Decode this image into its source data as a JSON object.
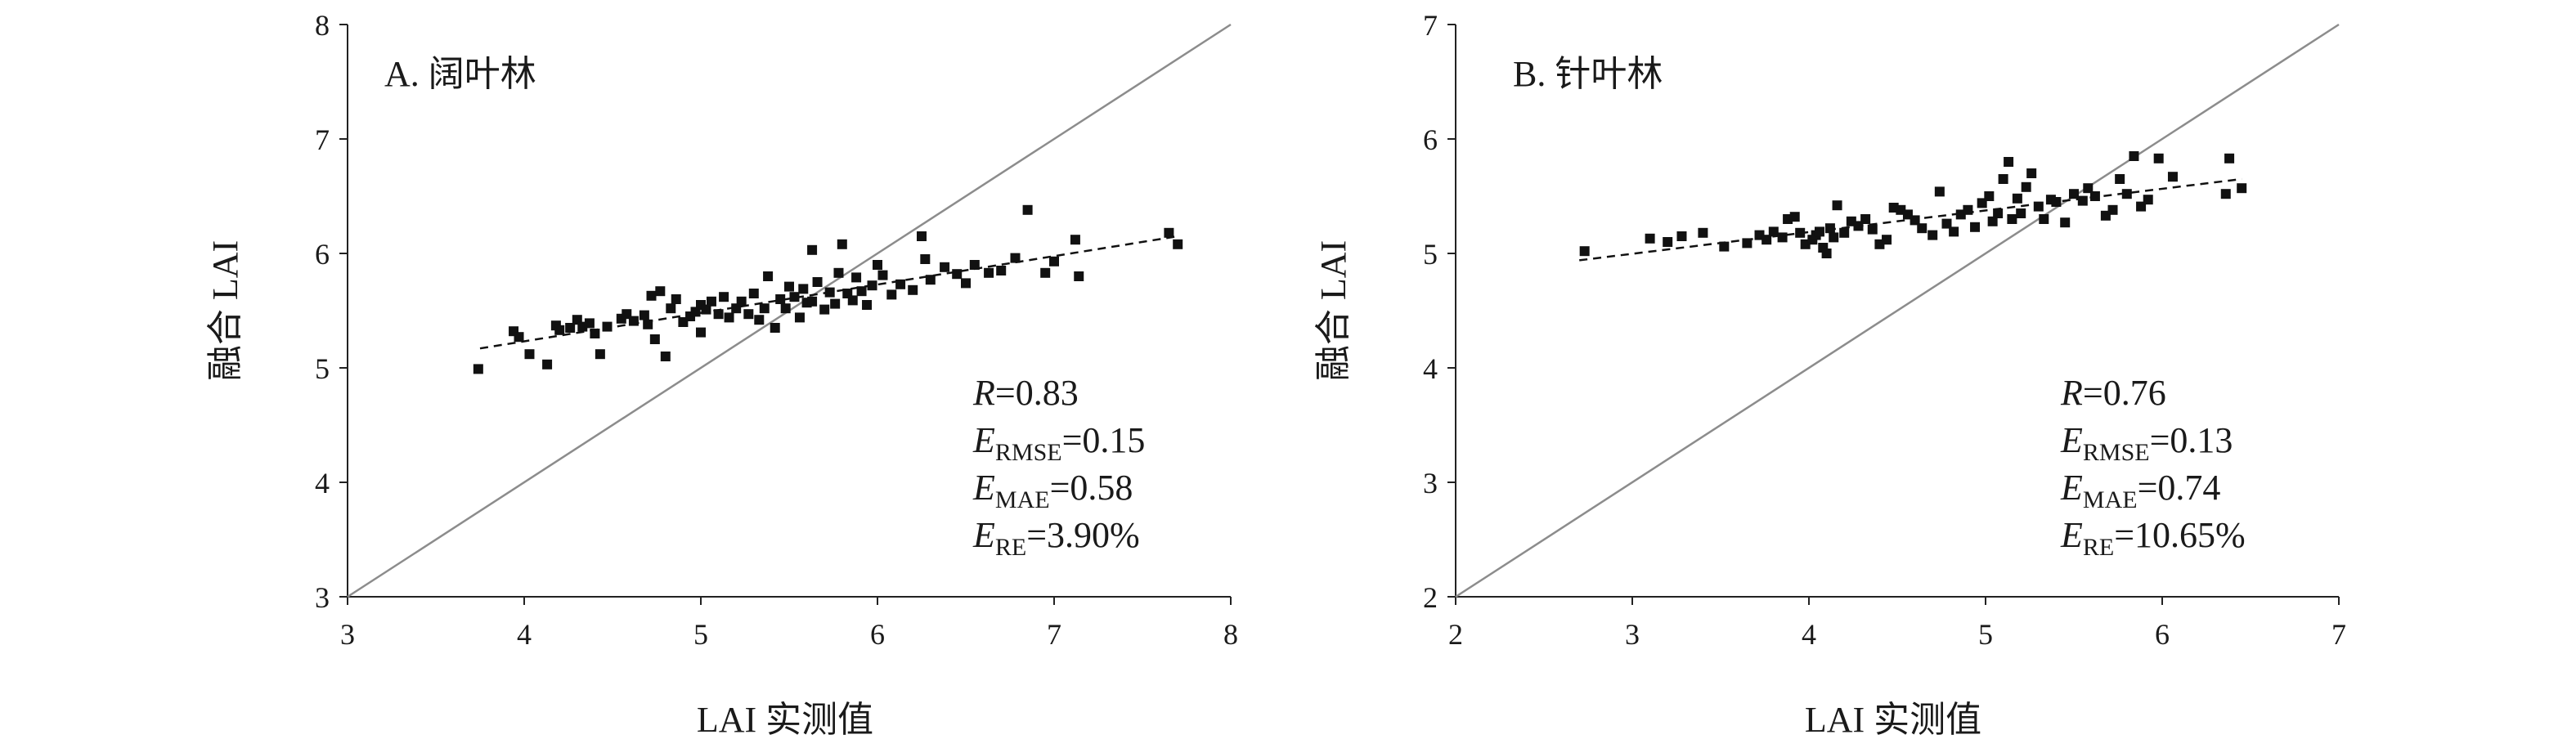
{
  "chart_data": [
    {
      "type": "scatter",
      "title": "A. 阔叶林",
      "xlabel": "LAI 实测值",
      "ylabel": "融合 LAI",
      "xlim": [
        3,
        8
      ],
      "ylim": [
        3,
        8
      ],
      "xticks": [
        "3",
        "4",
        "5",
        "6",
        "7",
        "8"
      ],
      "yticks": [
        "3",
        "4",
        "5",
        "6",
        "7",
        "8"
      ],
      "grid": false,
      "identity_line": true,
      "fit_line": {
        "x": [
          3.75,
          7.7
        ],
        "y": [
          5.17,
          6.15
        ]
      },
      "stats": [
        {
          "main": "R",
          "sub": "",
          "value": "=0.83"
        },
        {
          "main": "E",
          "sub": "RMSE",
          "value": "=0.15"
        },
        {
          "main": "E",
          "sub": "MAE",
          "value": "=0.58"
        },
        {
          "main": "E",
          "sub": "RE",
          "value": "=3.90%"
        }
      ],
      "points": [
        [
          3.74,
          4.99
        ],
        [
          3.94,
          5.32
        ],
        [
          3.97,
          5.27
        ],
        [
          4.03,
          5.12
        ],
        [
          4.13,
          5.03
        ],
        [
          4.18,
          5.37
        ],
        [
          4.2,
          5.33
        ],
        [
          4.26,
          5.35
        ],
        [
          4.3,
          5.42
        ],
        [
          4.33,
          5.36
        ],
        [
          4.37,
          5.39
        ],
        [
          4.4,
          5.3
        ],
        [
          4.43,
          5.12
        ],
        [
          4.47,
          5.36
        ],
        [
          4.55,
          5.43
        ],
        [
          4.58,
          5.47
        ],
        [
          4.62,
          5.41
        ],
        [
          4.68,
          5.46
        ],
        [
          4.7,
          5.38
        ],
        [
          4.72,
          5.63
        ],
        [
          4.74,
          5.25
        ],
        [
          4.77,
          5.67
        ],
        [
          4.8,
          5.1
        ],
        [
          4.83,
          5.52
        ],
        [
          4.86,
          5.6
        ],
        [
          4.9,
          5.4
        ],
        [
          4.94,
          5.45
        ],
        [
          4.97,
          5.49
        ],
        [
          5.0,
          5.55
        ],
        [
          5.0,
          5.31
        ],
        [
          5.03,
          5.51
        ],
        [
          5.06,
          5.58
        ],
        [
          5.1,
          5.47
        ],
        [
          5.13,
          5.62
        ],
        [
          5.16,
          5.44
        ],
        [
          5.2,
          5.52
        ],
        [
          5.23,
          5.58
        ],
        [
          5.27,
          5.47
        ],
        [
          5.3,
          5.65
        ],
        [
          5.33,
          5.42
        ],
        [
          5.36,
          5.52
        ],
        [
          5.38,
          5.8
        ],
        [
          5.42,
          5.35
        ],
        [
          5.45,
          5.6
        ],
        [
          5.48,
          5.52
        ],
        [
          5.5,
          5.71
        ],
        [
          5.53,
          5.62
        ],
        [
          5.56,
          5.44
        ],
        [
          5.58,
          5.69
        ],
        [
          5.6,
          5.57
        ],
        [
          5.63,
          5.58
        ],
        [
          5.63,
          6.03
        ],
        [
          5.66,
          5.75
        ],
        [
          5.7,
          5.51
        ],
        [
          5.73,
          5.66
        ],
        [
          5.76,
          5.56
        ],
        [
          5.78,
          5.83
        ],
        [
          5.8,
          6.08
        ],
        [
          5.83,
          5.65
        ],
        [
          5.86,
          5.59
        ],
        [
          5.88,
          5.79
        ],
        [
          5.91,
          5.67
        ],
        [
          5.94,
          5.55
        ],
        [
          5.97,
          5.72
        ],
        [
          6.0,
          5.9
        ],
        [
          6.03,
          5.81
        ],
        [
          6.08,
          5.64
        ],
        [
          6.13,
          5.73
        ],
        [
          6.2,
          5.68
        ],
        [
          6.25,
          6.15
        ],
        [
          6.27,
          5.95
        ],
        [
          6.3,
          5.77
        ],
        [
          6.38,
          5.88
        ],
        [
          6.45,
          5.82
        ],
        [
          6.5,
          5.74
        ],
        [
          6.55,
          5.9
        ],
        [
          6.63,
          5.83
        ],
        [
          6.7,
          5.85
        ],
        [
          6.78,
          5.96
        ],
        [
          6.85,
          6.38
        ],
        [
          6.95,
          5.83
        ],
        [
          7.0,
          5.93
        ],
        [
          7.12,
          6.12
        ],
        [
          7.14,
          5.8
        ],
        [
          7.65,
          6.18
        ],
        [
          7.7,
          6.08
        ]
      ]
    },
    {
      "type": "scatter",
      "title": "B. 针叶林",
      "xlabel": "LAI 实测值",
      "ylabel": "融合 LAI",
      "xlim": [
        2,
        7
      ],
      "ylim": [
        2,
        7
      ],
      "xticks": [
        "2",
        "3",
        "4",
        "5",
        "6",
        "7"
      ],
      "yticks": [
        "2",
        "3",
        "4",
        "5",
        "6",
        "7"
      ],
      "grid": false,
      "identity_line": true,
      "fit_line": {
        "x": [
          2.7,
          6.45
        ],
        "y": [
          4.94,
          5.65
        ]
      },
      "stats": [
        {
          "main": "R",
          "sub": "",
          "value": "=0.76"
        },
        {
          "main": "E",
          "sub": "RMSE",
          "value": "=0.13"
        },
        {
          "main": "E",
          "sub": "MAE",
          "value": "=0.74"
        },
        {
          "main": "E",
          "sub": "RE",
          "value": "=10.65%"
        }
      ],
      "points": [
        [
          2.73,
          5.02
        ],
        [
          3.1,
          5.13
        ],
        [
          3.2,
          5.1
        ],
        [
          3.28,
          5.15
        ],
        [
          3.4,
          5.18
        ],
        [
          3.52,
          5.06
        ],
        [
          3.65,
          5.09
        ],
        [
          3.72,
          5.16
        ],
        [
          3.76,
          5.12
        ],
        [
          3.8,
          5.19
        ],
        [
          3.85,
          5.14
        ],
        [
          3.88,
          5.3
        ],
        [
          3.92,
          5.32
        ],
        [
          3.95,
          5.18
        ],
        [
          3.98,
          5.08
        ],
        [
          4.02,
          5.12
        ],
        [
          4.04,
          5.16
        ],
        [
          4.06,
          5.19
        ],
        [
          4.08,
          5.05
        ],
        [
          4.1,
          5.0
        ],
        [
          4.12,
          5.22
        ],
        [
          4.14,
          5.14
        ],
        [
          4.16,
          5.42
        ],
        [
          4.2,
          5.18
        ],
        [
          4.24,
          5.28
        ],
        [
          4.28,
          5.24
        ],
        [
          4.32,
          5.3
        ],
        [
          4.36,
          5.21
        ],
        [
          4.4,
          5.08
        ],
        [
          4.44,
          5.12
        ],
        [
          4.48,
          5.4
        ],
        [
          4.52,
          5.38
        ],
        [
          4.56,
          5.34
        ],
        [
          4.6,
          5.29
        ],
        [
          4.64,
          5.22
        ],
        [
          4.7,
          5.16
        ],
        [
          4.74,
          5.54
        ],
        [
          4.78,
          5.26
        ],
        [
          4.82,
          5.19
        ],
        [
          4.86,
          5.34
        ],
        [
          4.9,
          5.38
        ],
        [
          4.94,
          5.23
        ],
        [
          4.98,
          5.44
        ],
        [
          5.02,
          5.5
        ],
        [
          5.04,
          5.28
        ],
        [
          5.07,
          5.35
        ],
        [
          5.1,
          5.65
        ],
        [
          5.13,
          5.8
        ],
        [
          5.15,
          5.3
        ],
        [
          5.18,
          5.48
        ],
        [
          5.2,
          5.35
        ],
        [
          5.23,
          5.58
        ],
        [
          5.26,
          5.7
        ],
        [
          5.3,
          5.41
        ],
        [
          5.33,
          5.3
        ],
        [
          5.37,
          5.47
        ],
        [
          5.4,
          5.45
        ],
        [
          5.45,
          5.27
        ],
        [
          5.5,
          5.52
        ],
        [
          5.55,
          5.46
        ],
        [
          5.58,
          5.57
        ],
        [
          5.62,
          5.5
        ],
        [
          5.68,
          5.33
        ],
        [
          5.72,
          5.38
        ],
        [
          5.76,
          5.65
        ],
        [
          5.8,
          5.52
        ],
        [
          5.84,
          5.85
        ],
        [
          5.88,
          5.41
        ],
        [
          5.92,
          5.47
        ],
        [
          5.98,
          5.83
        ],
        [
          6.06,
          5.67
        ],
        [
          6.36,
          5.52
        ],
        [
          6.38,
          5.83
        ],
        [
          6.45,
          5.57
        ]
      ]
    }
  ]
}
